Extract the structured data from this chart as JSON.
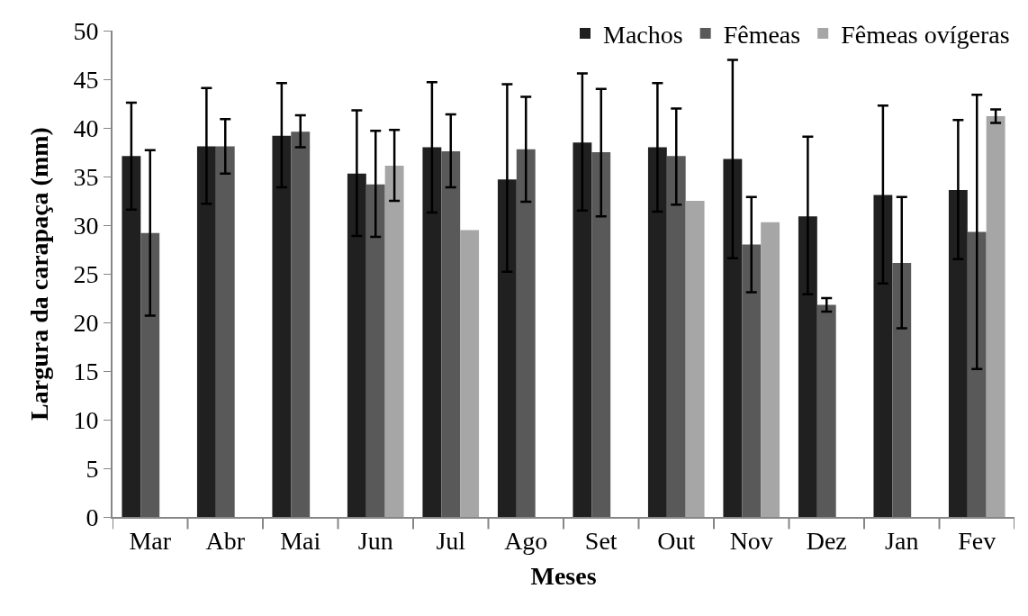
{
  "chart_data": {
    "type": "bar",
    "xlabel": "Meses",
    "ylabel": "Largura da carapaça (mm)",
    "categories": [
      "Mar",
      "Abr",
      "Mai",
      "Jun",
      "Jul",
      "Ago",
      "Set",
      "Out",
      "Nov",
      "Dez",
      "Jan",
      "Fev"
    ],
    "series": [
      {
        "name": "Machos",
        "color": "#202020",
        "values": [
          37.1,
          38.1,
          39.2,
          35.3,
          38.0,
          34.7,
          38.5,
          38.0,
          36.8,
          30.9,
          33.1,
          33.6
        ],
        "errors": [
          [
            31.6,
            42.6
          ],
          [
            32.2,
            44.1
          ],
          [
            33.9,
            44.6
          ],
          [
            28.9,
            41.8
          ],
          [
            31.3,
            44.7
          ],
          [
            25.2,
            44.5
          ],
          [
            31.5,
            45.6
          ],
          [
            31.4,
            44.6
          ],
          [
            26.6,
            47.0
          ],
          [
            22.9,
            39.1
          ],
          [
            24.0,
            42.3
          ],
          [
            26.5,
            40.8
          ]
        ]
      },
      {
        "name": "Fêmeas",
        "color": "#595959",
        "values": [
          29.2,
          38.1,
          39.6,
          34.2,
          37.6,
          37.8,
          37.5,
          37.1,
          28.0,
          21.8,
          26.1,
          29.3
        ],
        "errors": [
          [
            20.7,
            37.7
          ],
          [
            35.3,
            40.9
          ],
          [
            38.0,
            41.3
          ],
          [
            28.8,
            39.7
          ],
          [
            33.9,
            41.4
          ],
          [
            32.4,
            43.2
          ],
          [
            30.9,
            44.0
          ],
          [
            32.1,
            42.0
          ],
          [
            23.1,
            32.9
          ],
          [
            21.1,
            22.5
          ],
          [
            19.4,
            32.9
          ],
          [
            15.2,
            43.4
          ]
        ]
      },
      {
        "name": "Fêmeas ovígeras",
        "color": "#a6a6a6",
        "values": [
          null,
          null,
          null,
          36.1,
          29.5,
          null,
          null,
          32.5,
          30.3,
          null,
          null,
          41.2
        ],
        "errors": [
          null,
          null,
          null,
          [
            32.5,
            39.8
          ],
          null,
          null,
          null,
          null,
          null,
          null,
          null,
          [
            40.5,
            41.9
          ]
        ]
      }
    ],
    "ylim": [
      0,
      50
    ],
    "yticks": [
      0,
      5,
      10,
      15,
      20,
      25,
      30,
      35,
      40,
      45,
      50
    ],
    "legend": "top right"
  }
}
